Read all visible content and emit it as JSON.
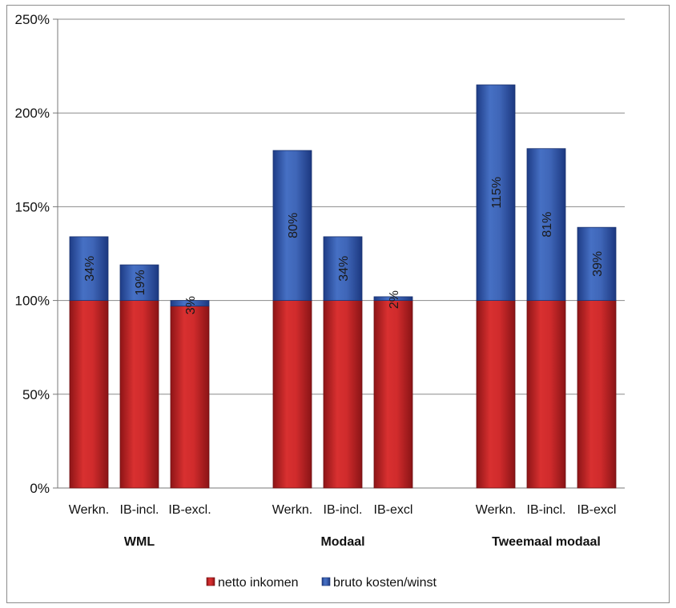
{
  "chart_data": {
    "type": "bar",
    "stacked": true,
    "ylim": [
      0,
      250
    ],
    "y_ticks": [
      "0%",
      "50%",
      "100%",
      "150%",
      "200%",
      "250%"
    ],
    "grid": true,
    "legend_position": "bottom",
    "colors": {
      "netto": "#c8282a",
      "bruto": "#3c62b4"
    },
    "groups": [
      {
        "label": "WML",
        "categories": [
          "Werkn.",
          "IB-incl.",
          "IB-excl."
        ],
        "netto": [
          100,
          100,
          97
        ],
        "bruto": [
          34,
          19,
          3
        ],
        "data_labels": [
          "34%",
          "19%",
          "3%"
        ]
      },
      {
        "label": "Modaal",
        "categories": [
          "Werkn.",
          "IB-incl.",
          "IB-excl"
        ],
        "netto": [
          100,
          100,
          100
        ],
        "bruto": [
          80,
          34,
          2
        ],
        "data_labels": [
          "80%",
          "34%",
          "2%"
        ]
      },
      {
        "label": "Tweemaal modaal",
        "categories": [
          "Werkn.",
          "IB-incl.",
          "IB-excl"
        ],
        "netto": [
          100,
          100,
          100
        ],
        "bruto": [
          115,
          81,
          39
        ],
        "data_labels": [
          "115%",
          "81%",
          "39%"
        ]
      }
    ],
    "series": [
      {
        "name": "netto inkomen",
        "key": "netto"
      },
      {
        "name": "bruto kosten/winst",
        "key": "bruto"
      }
    ]
  }
}
